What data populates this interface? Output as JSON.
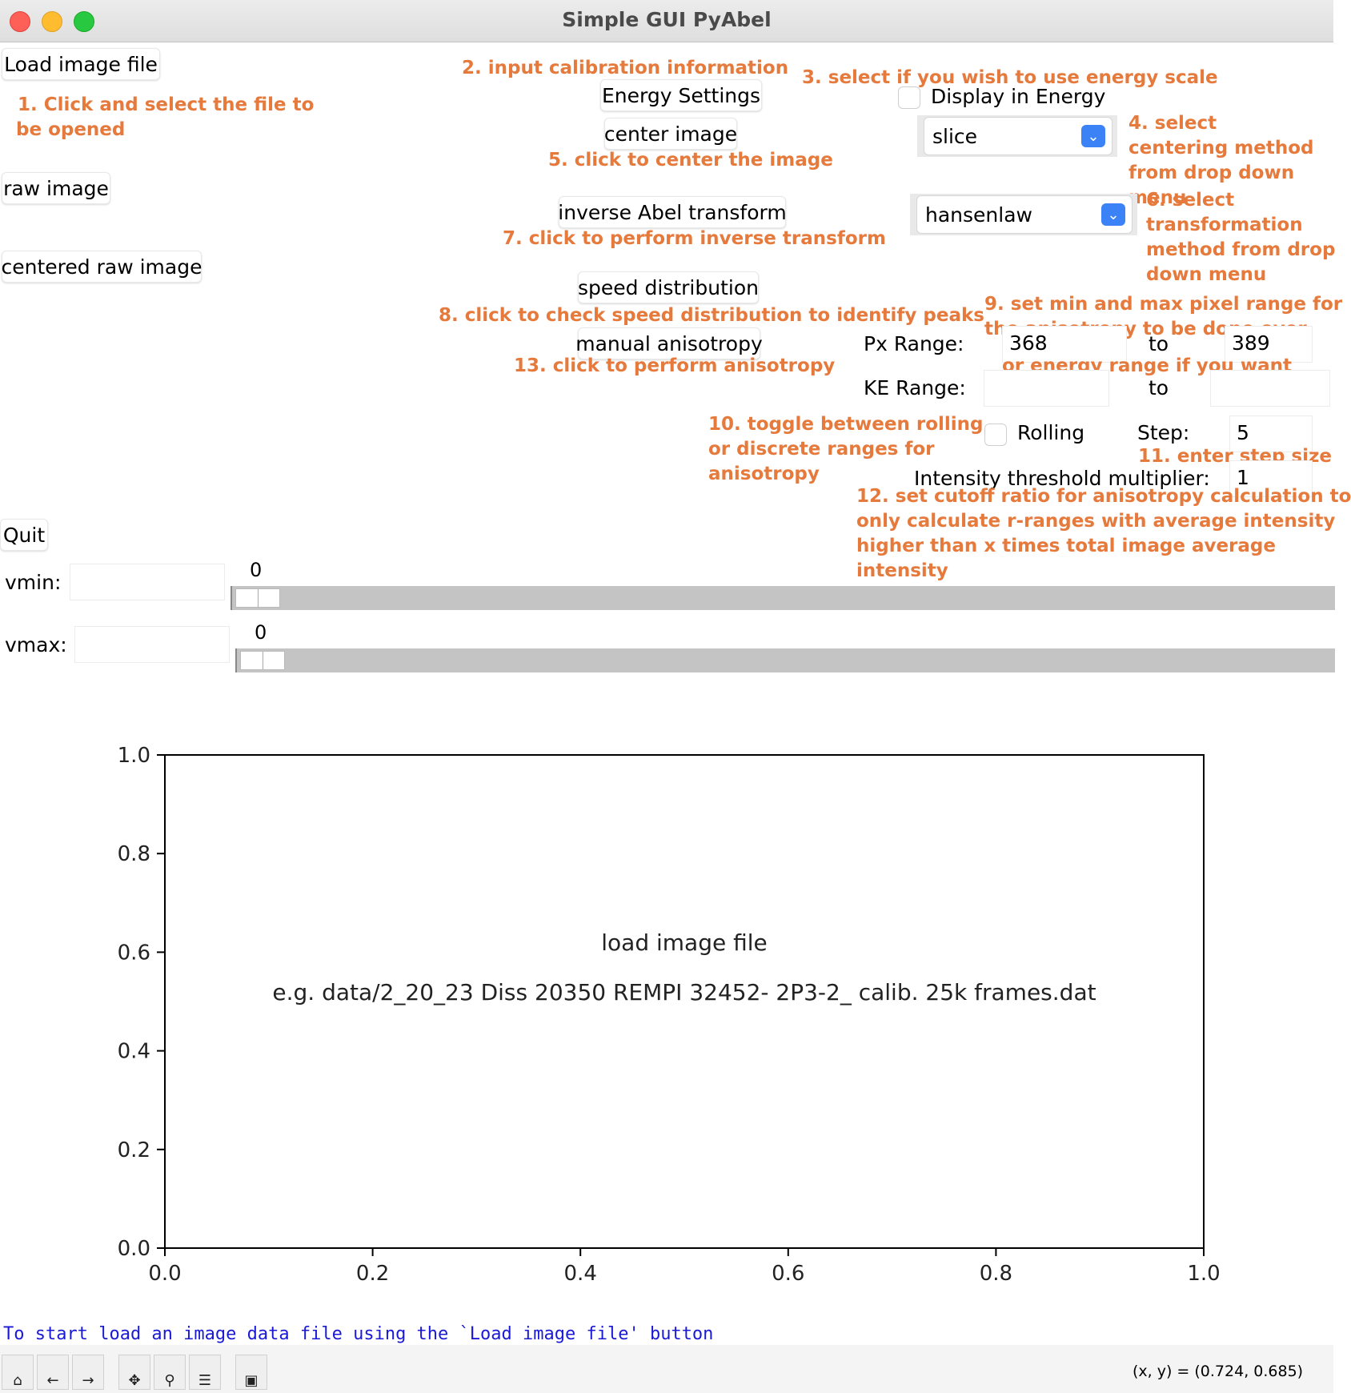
{
  "window": {
    "title": "Simple GUI PyAbel"
  },
  "buttons": {
    "load": "Load image file",
    "raw": "raw image",
    "centered_raw": "centered raw image",
    "quit": "Quit",
    "energy_settings": "Energy Settings",
    "center_image": "center image",
    "inverse_abel": "inverse Abel transform",
    "speed_distribution": "speed distribution",
    "manual_anisotropy": "manual anisotropy"
  },
  "annotations": {
    "a1_l1": "1. Click and select the file to",
    "a1_l2": "be opened",
    "a2": "2. input calibration information",
    "a3": "3. select if you wish to use energy scale",
    "a4_l1": "4. select",
    "a4_l2": "centering method",
    "a4_l3": "from drop down",
    "a4_l4": "menu",
    "a5": "5. click to center the image",
    "a6_l1": "6. select",
    "a6_l2": "transformation",
    "a6_l3": "method from drop",
    "a6_l4": "down menu",
    "a7": "7. click to perform inverse transform",
    "a8": "8. click to check speed distribution to identify peaks",
    "a9_l1": "9. set min and max pixel range for",
    "a9_l2": "the anisotropy to be done over",
    "a9_l3": "or energy range if you want",
    "a10_l1": "10. toggle between rolling",
    "a10_l2": "or discrete ranges for",
    "a10_l3": "anisotropy",
    "a11": "11. enter step size",
    "a12_l1": "12. set cutoff ratio for anisotropy calculation to",
    "a12_l2": "only calculate r-ranges with average intensity",
    "a12_l3": "higher than x times total image average",
    "a12_l4": "intensity",
    "a13": "13. click to perform anisotropy"
  },
  "energy": {
    "display_label": "Display in Energy",
    "checked": false
  },
  "centering_select": {
    "value": "slice"
  },
  "transform_select": {
    "value": "hansenlaw"
  },
  "anisotropy": {
    "px_range_label": "Px Range:",
    "px_min": "368",
    "px_to": "to",
    "px_max": "389",
    "ke_range_label": "KE Range:",
    "ke_min": "",
    "ke_to": "to",
    "ke_max": "",
    "rolling_label": "Rolling",
    "rolling_checked": false,
    "step_label": "Step:",
    "step_value": "5",
    "threshold_label": "Intensity threshold multiplier:",
    "threshold_value": "1"
  },
  "vmin": {
    "label": "vmin:",
    "value": "",
    "slider_value": "0"
  },
  "vmax": {
    "label": "vmax:",
    "value": "",
    "slider_value": "0"
  },
  "chart_data": {
    "type": "scatter",
    "x": [],
    "y": [],
    "xlim": [
      0.0,
      1.0
    ],
    "ylim": [
      0.0,
      1.0
    ],
    "xticks": [
      "0.0",
      "0.2",
      "0.4",
      "0.6",
      "0.8",
      "1.0"
    ],
    "yticks": [
      "0.0",
      "0.2",
      "0.4",
      "0.6",
      "0.8",
      "1.0"
    ],
    "annotations": [
      "load image file",
      "e.g. data/2_20_23 Diss 20350 REMPI 32452- 2P3-2_ calib. 25k frames.dat"
    ],
    "grid": false
  },
  "status": {
    "message": "To start load an image data file using the `Load image file' button",
    "coords": "(x, y) = (0.724, 0.685)"
  },
  "toolbar": {
    "icons": [
      "home-icon",
      "back-icon",
      "forward-icon",
      "pan-icon",
      "zoom-icon",
      "subplots-icon",
      "save-icon"
    ]
  },
  "colors": {
    "annotation": "#e57a3c",
    "status": "#1a1ad6",
    "accent": "#3b82f6"
  }
}
